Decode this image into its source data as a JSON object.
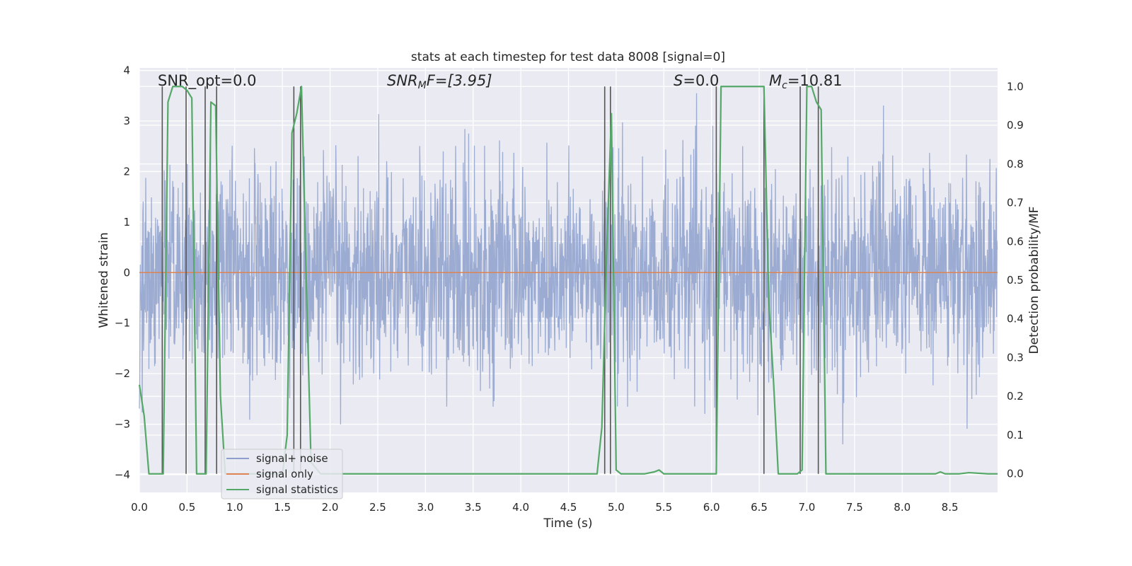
{
  "chart_data": {
    "type": "line",
    "title": "stats at each timestep for test data 8008 [signal=0]",
    "xlabel": "Time (s)",
    "ylabel": "Whitened strain",
    "ylabel_right": "Detection probability/MF",
    "xlim": [
      0,
      9
    ],
    "ylim": [
      -4.35,
      4.05
    ],
    "ylim_right": [
      -0.048,
      1.048
    ],
    "x_ticks": [
      0.0,
      0.5,
      1.0,
      1.5,
      2.0,
      2.5,
      3.0,
      3.5,
      4.0,
      4.5,
      5.0,
      5.5,
      6.0,
      6.5,
      7.0,
      7.5,
      8.0,
      8.5
    ],
    "x_tick_labels": [
      "0.0",
      "0.5",
      "1.0",
      "1.5",
      "2.0",
      "2.5",
      "3.0",
      "3.5",
      "4.0",
      "4.5",
      "5.0",
      "5.5",
      "6.0",
      "6.5",
      "7.0",
      "7.5",
      "8.0",
      "8.5"
    ],
    "y_ticks": [
      -4,
      -3,
      -2,
      -1,
      0,
      1,
      2,
      3,
      4
    ],
    "y_tick_labels": [
      "−4",
      "−3",
      "−2",
      "−1",
      "0",
      "1",
      "2",
      "3",
      "4"
    ],
    "y_ticks_right": [
      0.0,
      0.1,
      0.2,
      0.3,
      0.4,
      0.5,
      0.6,
      0.7,
      0.8,
      0.9,
      1.0
    ],
    "y_tick_labels_right": [
      "0.0",
      "0.1",
      "0.2",
      "0.3",
      "0.4",
      "0.5",
      "0.6",
      "0.7",
      "0.8",
      "0.9",
      "1.0"
    ],
    "grid": true,
    "legend_position": "lower-left",
    "annotations": {
      "snr_opt": "SNR_opt=0.0",
      "snr_mf_italic": "SNR",
      "snr_mf_sub": "M",
      "snr_mf_rest": "F=[3.95]",
      "s_italic": "S",
      "s_rest": "=0.0",
      "mc_italic": "M",
      "mc_sub": "c",
      "mc_rest": "=10.81"
    },
    "series": [
      {
        "name": "signal+ noise",
        "color": "#8da0cb",
        "description_stat": {
          "sample_rate": 300,
          "approx_std": 1.0
        }
      },
      {
        "name": "signal only",
        "color": "#dd8452",
        "x": [
          0,
          9
        ],
        "y": [
          0,
          0
        ]
      },
      {
        "name": "signal statistics",
        "color": "#55a868",
        "axis": "right",
        "x": [
          0.0,
          0.05,
          0.1,
          0.15,
          0.2,
          0.25,
          0.3,
          0.35,
          0.4,
          0.45,
          0.5,
          0.55,
          0.6,
          0.65,
          0.7,
          0.75,
          0.8,
          0.85,
          0.9,
          1.0,
          1.5,
          1.55,
          1.6,
          1.65,
          1.7,
          1.75,
          1.8,
          1.9,
          2.5,
          3.0,
          3.5,
          4.0,
          4.5,
          4.8,
          4.85,
          4.9,
          4.95,
          5.0,
          5.05,
          5.1,
          5.3,
          5.4,
          5.45,
          5.5,
          6.0,
          6.05,
          6.1,
          6.15,
          6.5,
          6.55,
          6.6,
          6.65,
          6.7,
          6.8,
          6.9,
          6.95,
          7.0,
          7.05,
          7.1,
          7.15,
          7.2,
          7.25,
          7.5,
          8.0,
          8.35,
          8.4,
          8.45,
          8.6,
          8.7,
          8.9,
          9.0
        ],
        "y": [
          0.23,
          0.15,
          0.0,
          0.0,
          0.0,
          0.0,
          0.96,
          1.0,
          1.0,
          1.0,
          0.99,
          0.97,
          0.0,
          0.0,
          0.0,
          0.96,
          0.95,
          0.2,
          0.0,
          0.0,
          0.0,
          0.1,
          0.88,
          0.93,
          1.0,
          0.5,
          0.03,
          0.0,
          0.0,
          0.0,
          0.0,
          0.0,
          0.0,
          0.0,
          0.12,
          0.57,
          0.93,
          0.01,
          0.0,
          0.0,
          0.0,
          0.005,
          0.01,
          0.0,
          0.0,
          0.0,
          1.0,
          1.0,
          1.0,
          1.0,
          0.45,
          0.24,
          0.0,
          0.0,
          0.0,
          0.01,
          1.0,
          1.0,
          0.96,
          0.94,
          0.0,
          0.0,
          0.0,
          0.0,
          0.0,
          0.005,
          0.0,
          0.0,
          0.003,
          0.0,
          0.0
        ]
      }
    ],
    "vertical_lines_x": [
      0.24,
      0.49,
      0.69,
      0.81,
      1.62,
      1.69,
      4.88,
      4.94,
      6.05,
      6.55,
      6.93,
      7.12
    ]
  }
}
